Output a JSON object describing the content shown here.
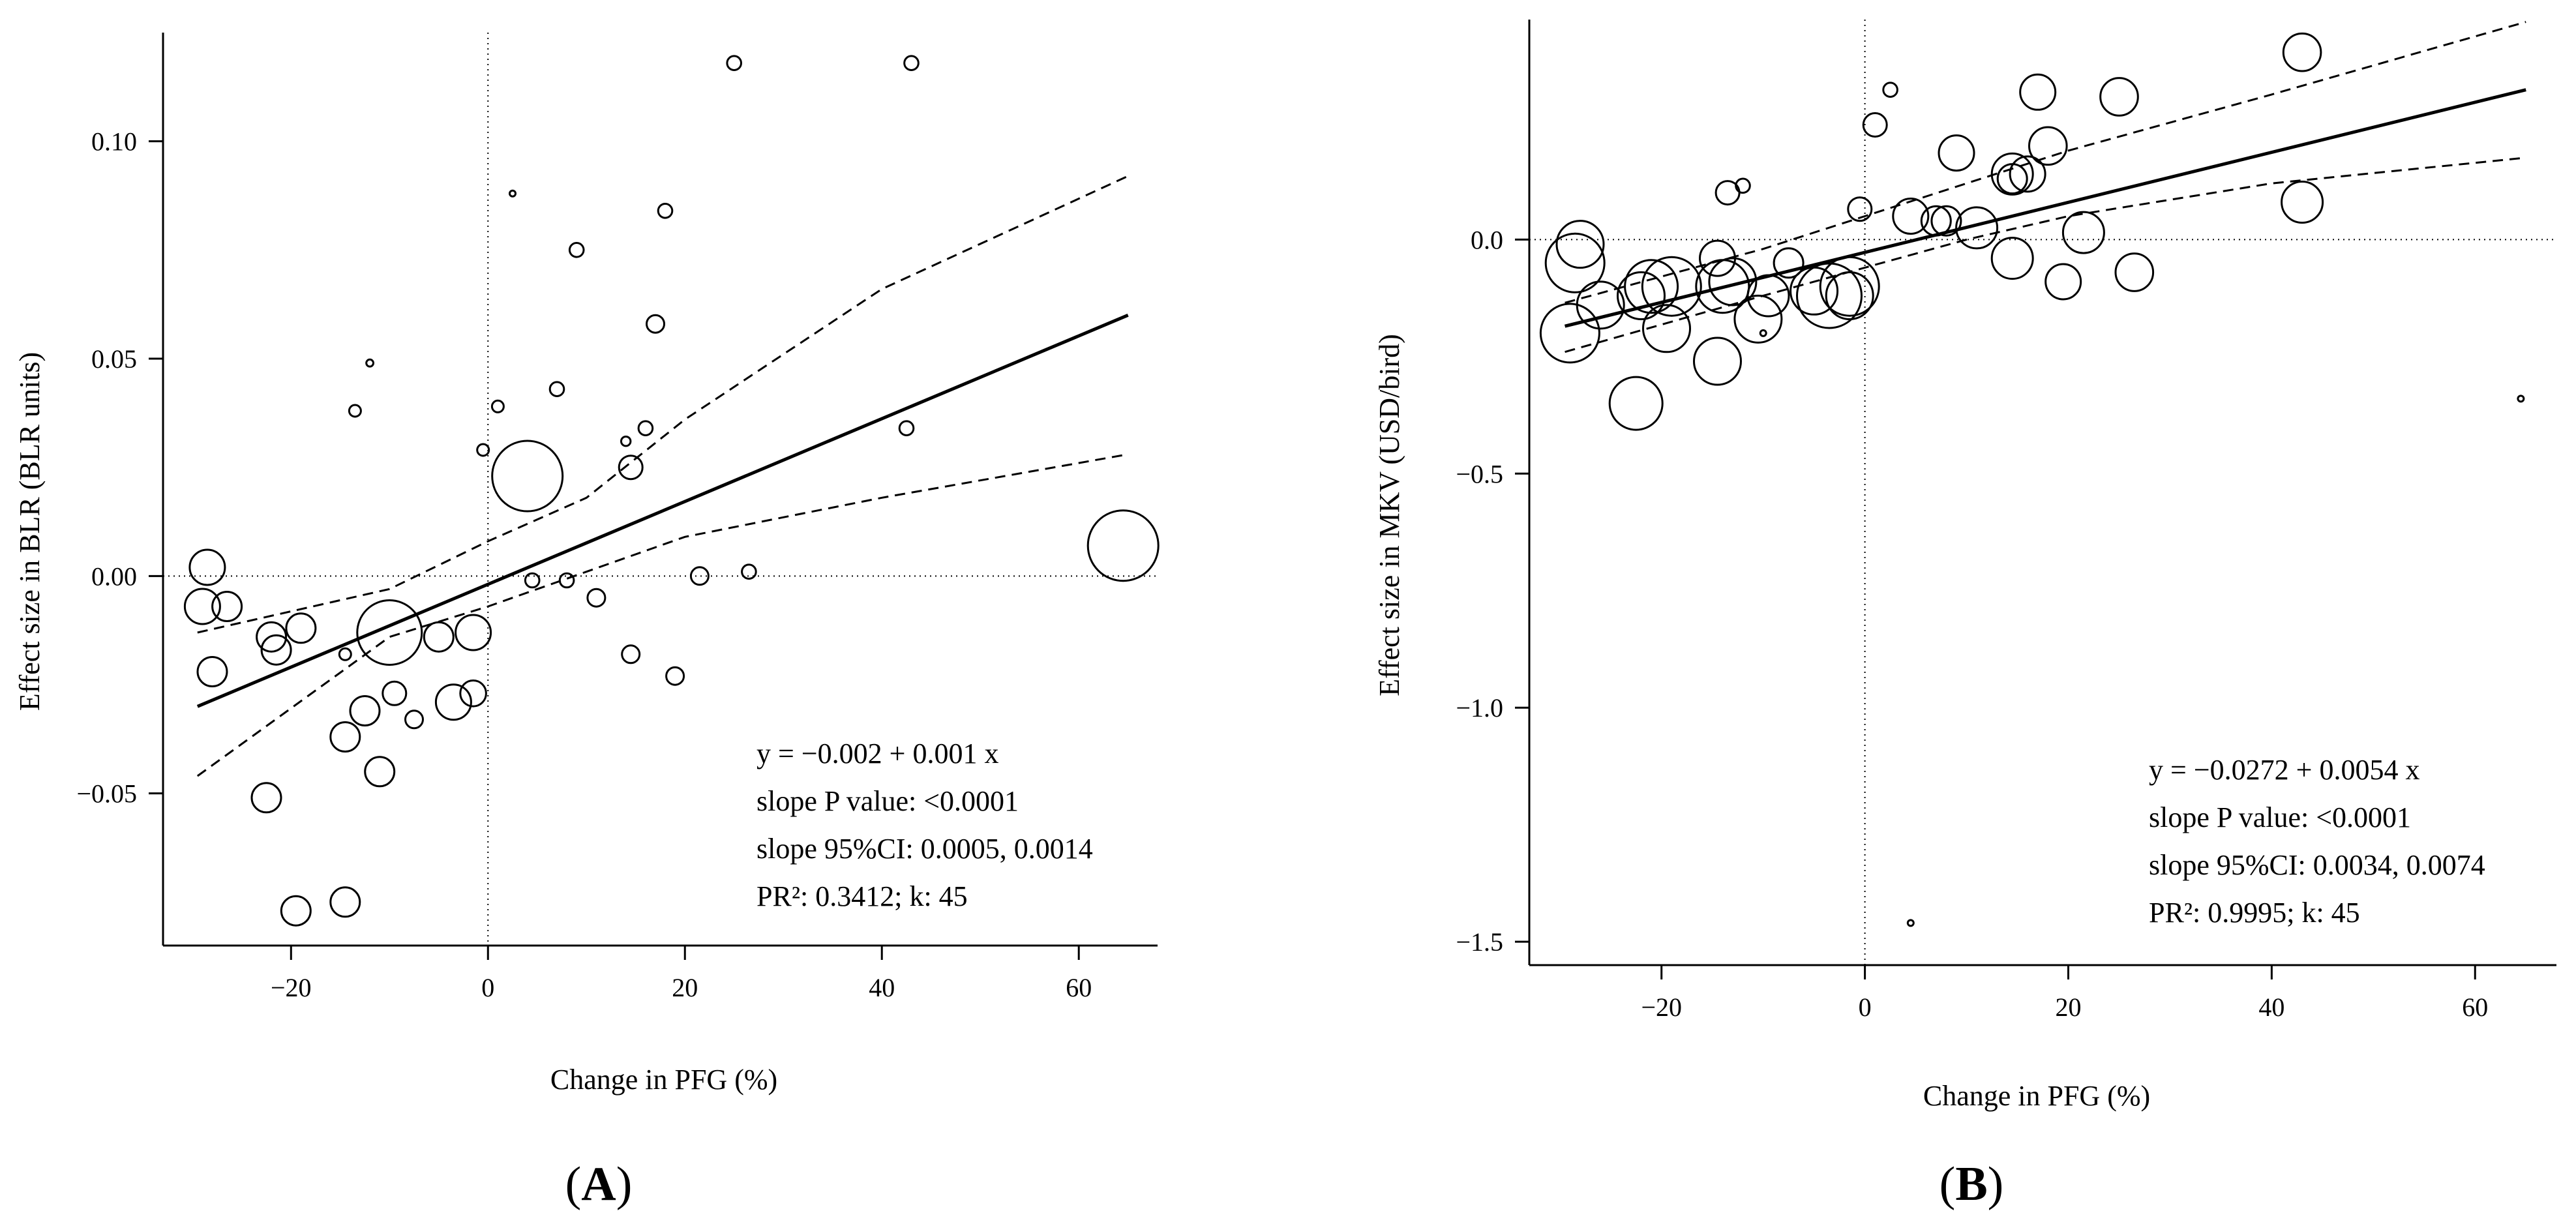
{
  "chart_data": [
    {
      "type": "scatter",
      "panel_label": "A",
      "xlabel": "Change in PFG (%)",
      "ylabel": "Effect size in BLR (BLR units)",
      "xlim": [
        -33,
        68
      ],
      "ylim": [
        -0.085,
        0.125
      ],
      "xticks": [
        -20,
        0,
        20,
        40,
        60
      ],
      "xtick_labels": [
        "−20",
        "0",
        "20",
        "40",
        "60"
      ],
      "yticks": [
        -0.05,
        0.0,
        0.05,
        0.1
      ],
      "ytick_labels": [
        "−0.05",
        "0.00",
        "0.05",
        "0.10"
      ],
      "reference_lines": {
        "x": 0,
        "y": 0,
        "style": "dotted"
      },
      "regression": {
        "intercept": -0.002,
        "slope": 0.001,
        "line_endpoints": [
          [
            -29.5,
            -0.03
          ],
          [
            65,
            0.06
          ]
        ],
        "ci_upper": [
          [
            -29.5,
            -0.013
          ],
          [
            -10,
            -0.003
          ],
          [
            0,
            0.008
          ],
          [
            10,
            0.018
          ],
          [
            20,
            0.036
          ],
          [
            40,
            0.066
          ],
          [
            65,
            0.092
          ]
        ],
        "ci_lower": [
          [
            -29.5,
            -0.046
          ],
          [
            -10,
            -0.014
          ],
          [
            0,
            -0.007
          ],
          [
            10,
            0.001
          ],
          [
            20,
            0.009
          ],
          [
            40,
            0.018
          ],
          [
            65,
            0.028
          ]
        ]
      },
      "annotations": [
        "y = −0.002 + 0.001 x",
        "slope P value: <0.0001",
        "slope 95%CI: 0.0005, 0.0014",
        "PR²: 0.3412; k: 45"
      ],
      "points": [
        {
          "x": -29,
          "y": -0.007,
          "w": 3
        },
        {
          "x": -28.5,
          "y": 0.002,
          "w": 3
        },
        {
          "x": -28,
          "y": -0.022,
          "w": 2.5
        },
        {
          "x": -26.5,
          "y": -0.007,
          "w": 2.5
        },
        {
          "x": -22.5,
          "y": -0.051,
          "w": 2.5
        },
        {
          "x": -22,
          "y": -0.014,
          "w": 2.5
        },
        {
          "x": -21.5,
          "y": -0.017,
          "w": 2.5
        },
        {
          "x": -19.5,
          "y": -0.077,
          "w": 2.5
        },
        {
          "x": -19,
          "y": -0.012,
          "w": 2.5
        },
        {
          "x": -14.5,
          "y": -0.075,
          "w": 2.5
        },
        {
          "x": -14.5,
          "y": -0.037,
          "w": 2.5
        },
        {
          "x": -14.5,
          "y": -0.018,
          "w": 1
        },
        {
          "x": -13.5,
          "y": 0.038,
          "w": 1
        },
        {
          "x": -12.5,
          "y": -0.031,
          "w": 2.5
        },
        {
          "x": -12,
          "y": 0.049,
          "w": 0.6
        },
        {
          "x": -11,
          "y": -0.045,
          "w": 2.5
        },
        {
          "x": -10,
          "y": -0.013,
          "w": 5.5
        },
        {
          "x": -9.5,
          "y": -0.027,
          "w": 2
        },
        {
          "x": -7.5,
          "y": -0.033,
          "w": 1.5
        },
        {
          "x": -5,
          "y": -0.014,
          "w": 2.5
        },
        {
          "x": -3.5,
          "y": -0.029,
          "w": 3
        },
        {
          "x": -1.5,
          "y": -0.013,
          "w": 3
        },
        {
          "x": -1.5,
          "y": -0.027,
          "w": 2.2
        },
        {
          "x": -0.5,
          "y": 0.029,
          "w": 1
        },
        {
          "x": 1,
          "y": 0.039,
          "w": 1
        },
        {
          "x": 2.5,
          "y": 0.088,
          "w": 0.5
        },
        {
          "x": 4,
          "y": 0.023,
          "w": 6
        },
        {
          "x": 4.5,
          "y": -0.001,
          "w": 1.2
        },
        {
          "x": 7,
          "y": 0.043,
          "w": 1.2
        },
        {
          "x": 8,
          "y": -0.001,
          "w": 1.2
        },
        {
          "x": 9,
          "y": 0.075,
          "w": 1.2
        },
        {
          "x": 11,
          "y": -0.005,
          "w": 1.5
        },
        {
          "x": 14,
          "y": 0.031,
          "w": 0.8
        },
        {
          "x": 14.5,
          "y": 0.025,
          "w": 2
        },
        {
          "x": 14.5,
          "y": -0.018,
          "w": 1.5
        },
        {
          "x": 16,
          "y": 0.034,
          "w": 1.2
        },
        {
          "x": 17,
          "y": 0.058,
          "w": 1.5
        },
        {
          "x": 18,
          "y": 0.084,
          "w": 1.2
        },
        {
          "x": 19,
          "y": -0.023,
          "w": 1.5
        },
        {
          "x": 21.5,
          "y": 0.0,
          "w": 1.5
        },
        {
          "x": 25,
          "y": 0.118,
          "w": 1.2
        },
        {
          "x": 26.5,
          "y": 0.001,
          "w": 1.2
        },
        {
          "x": 42.5,
          "y": 0.034,
          "w": 1.2
        },
        {
          "x": 43,
          "y": 0.118,
          "w": 1.2
        },
        {
          "x": 64.5,
          "y": 0.007,
          "w": 6
        }
      ]
    },
    {
      "type": "scatter",
      "panel_label": "B",
      "xlabel": "Change in PFG (%)",
      "ylabel": "Effect size in MKV (USD/bird)",
      "xlim": [
        -33,
        68
      ],
      "ylim": [
        -1.55,
        0.47
      ],
      "xticks": [
        -20,
        0,
        20,
        40,
        60
      ],
      "xtick_labels": [
        "−20",
        "0",
        "20",
        "40",
        "60"
      ],
      "yticks": [
        -1.5,
        -1.0,
        -0.5,
        0.0
      ],
      "ytick_labels": [
        "−1.5",
        "−1.0",
        "−0.5",
        "0.0"
      ],
      "reference_lines": {
        "x": 0,
        "y": 0,
        "style": "dotted"
      },
      "regression": {
        "intercept": -0.0272,
        "slope": 0.0054,
        "line_endpoints": [
          [
            -29.5,
            -0.185
          ],
          [
            65,
            0.32
          ]
        ],
        "ci_upper": [
          [
            -29.5,
            -0.135
          ],
          [
            -10,
            -0.02
          ],
          [
            0,
            0.05
          ],
          [
            10,
            0.12
          ],
          [
            20,
            0.19
          ],
          [
            40,
            0.31
          ],
          [
            65,
            0.465
          ]
        ],
        "ci_lower": [
          [
            -29.5,
            -0.24
          ],
          [
            -10,
            -0.12
          ],
          [
            0,
            -0.06
          ],
          [
            10,
            0.0
          ],
          [
            20,
            0.05
          ],
          [
            40,
            0.12
          ],
          [
            65,
            0.175
          ]
        ]
      },
      "annotations": [
        "y = −0.0272 + 0.0054 x",
        "slope P value: <0.0001",
        "slope 95%CI: 0.0034, 0.0074",
        "PR²: 0.9995; k: 45"
      ],
      "points": [
        {
          "x": -29,
          "y": -0.2,
          "w": 5
        },
        {
          "x": -28.5,
          "y": -0.05,
          "w": 5
        },
        {
          "x": -28,
          "y": -0.01,
          "w": 4
        },
        {
          "x": -26,
          "y": -0.14,
          "w": 4
        },
        {
          "x": -22.5,
          "y": -0.35,
          "w": 4.5
        },
        {
          "x": -22,
          "y": -0.12,
          "w": 4
        },
        {
          "x": -21,
          "y": -0.1,
          "w": 4.5
        },
        {
          "x": -19.5,
          "y": -0.19,
          "w": 4
        },
        {
          "x": -19,
          "y": -0.1,
          "w": 5
        },
        {
          "x": -14.5,
          "y": -0.26,
          "w": 4
        },
        {
          "x": -14.5,
          "y": -0.04,
          "w": 3
        },
        {
          "x": -14,
          "y": -0.1,
          "w": 4.5
        },
        {
          "x": -13.5,
          "y": 0.1,
          "w": 2
        },
        {
          "x": -13,
          "y": -0.09,
          "w": 4
        },
        {
          "x": -12,
          "y": 0.115,
          "w": 1.2
        },
        {
          "x": -10.5,
          "y": -0.17,
          "w": 4
        },
        {
          "x": -10,
          "y": -0.2,
          "w": 0.5
        },
        {
          "x": -9.5,
          "y": -0.12,
          "w": 3.5
        },
        {
          "x": -7.5,
          "y": -0.05,
          "w": 2.5
        },
        {
          "x": -5,
          "y": -0.11,
          "w": 4
        },
        {
          "x": -3.5,
          "y": -0.12,
          "w": 5.5
        },
        {
          "x": -1.5,
          "y": -0.1,
          "w": 5
        },
        {
          "x": -1.5,
          "y": -0.12,
          "w": 4
        },
        {
          "x": -0.5,
          "y": 0.065,
          "w": 2
        },
        {
          "x": 1,
          "y": 0.245,
          "w": 2
        },
        {
          "x": 2.5,
          "y": 0.32,
          "w": 1.2
        },
        {
          "x": 4.5,
          "y": -1.46,
          "w": 0.5
        },
        {
          "x": 4.5,
          "y": 0.05,
          "w": 3
        },
        {
          "x": 7,
          "y": 0.04,
          "w": 2.5
        },
        {
          "x": 8,
          "y": 0.04,
          "w": 2.5
        },
        {
          "x": 9,
          "y": 0.185,
          "w": 3
        },
        {
          "x": 11,
          "y": 0.025,
          "w": 3.5
        },
        {
          "x": 14.5,
          "y": 0.14,
          "w": 3.5
        },
        {
          "x": 14.5,
          "y": -0.04,
          "w": 3.5
        },
        {
          "x": 14.5,
          "y": 0.13,
          "w": 2.5
        },
        {
          "x": 16,
          "y": 0.14,
          "w": 3
        },
        {
          "x": 17,
          "y": 0.315,
          "w": 3
        },
        {
          "x": 18,
          "y": 0.2,
          "w": 3.2
        },
        {
          "x": 19.5,
          "y": -0.09,
          "w": 3
        },
        {
          "x": 21.5,
          "y": 0.015,
          "w": 3.5
        },
        {
          "x": 25,
          "y": 0.305,
          "w": 3.2
        },
        {
          "x": 26.5,
          "y": -0.07,
          "w": 3.2
        },
        {
          "x": 43,
          "y": 0.08,
          "w": 3.5
        },
        {
          "x": 43,
          "y": 0.4,
          "w": 3.2
        },
        {
          "x": 64.5,
          "y": -0.34,
          "w": 0.5
        }
      ]
    }
  ]
}
